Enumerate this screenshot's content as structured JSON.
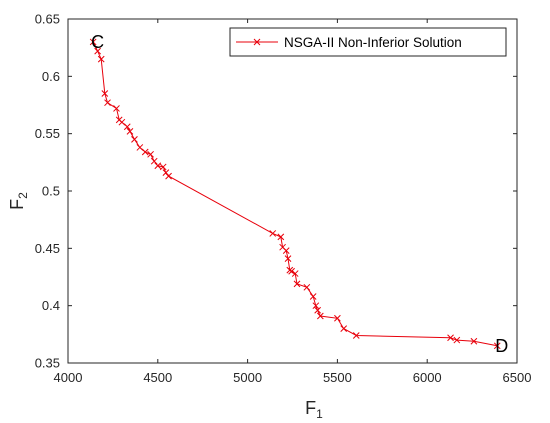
{
  "chart_data": {
    "type": "line",
    "xlabel_main": "F",
    "xlabel_sub": "1",
    "ylabel_main": "F",
    "ylabel_sub": "2",
    "xlim": [
      4000,
      6500
    ],
    "ylim": [
      0.35,
      0.65
    ],
    "xticks": [
      4000,
      4500,
      5000,
      5500,
      6000,
      6500
    ],
    "xtick_labels": [
      "4000",
      "4500",
      "5000",
      "5500",
      "6000",
      "6500"
    ],
    "yticks": [
      0.35,
      0.4,
      0.45,
      0.5,
      0.55,
      0.6,
      0.65
    ],
    "ytick_labels": [
      "0.35",
      "0.4",
      "0.45",
      "0.5",
      "0.55",
      "0.6",
      "0.65"
    ],
    "grid": false,
    "legend_position": "top-right",
    "series": [
      {
        "name": "NSGA-II Non-Inferior Solution",
        "color": "#e8000b",
        "marker": "x",
        "x": [
          4140,
          4165,
          4185,
          4205,
          4220,
          4270,
          4285,
          4300,
          4330,
          4345,
          4370,
          4400,
          4430,
          4460,
          4480,
          4500,
          4530,
          4545,
          4560,
          5140,
          5185,
          5195,
          5215,
          5225,
          5235,
          5245,
          5265,
          5275,
          5330,
          5365,
          5380,
          5390,
          5405,
          5500,
          5535,
          5605,
          6130,
          6165,
          6260,
          6390
        ],
        "y": [
          0.63,
          0.622,
          0.615,
          0.585,
          0.577,
          0.572,
          0.562,
          0.56,
          0.556,
          0.552,
          0.545,
          0.538,
          0.534,
          0.532,
          0.526,
          0.522,
          0.521,
          0.516,
          0.513,
          0.463,
          0.46,
          0.451,
          0.448,
          0.441,
          0.431,
          0.43,
          0.428,
          0.419,
          0.416,
          0.408,
          0.4,
          0.396,
          0.391,
          0.389,
          0.38,
          0.374,
          0.372,
          0.37,
          0.369,
          0.365
        ]
      }
    ],
    "annotations": [
      {
        "label": "C",
        "x": 4140,
        "y": 0.63
      },
      {
        "label": "D",
        "x": 6390,
        "y": 0.365
      }
    ]
  }
}
